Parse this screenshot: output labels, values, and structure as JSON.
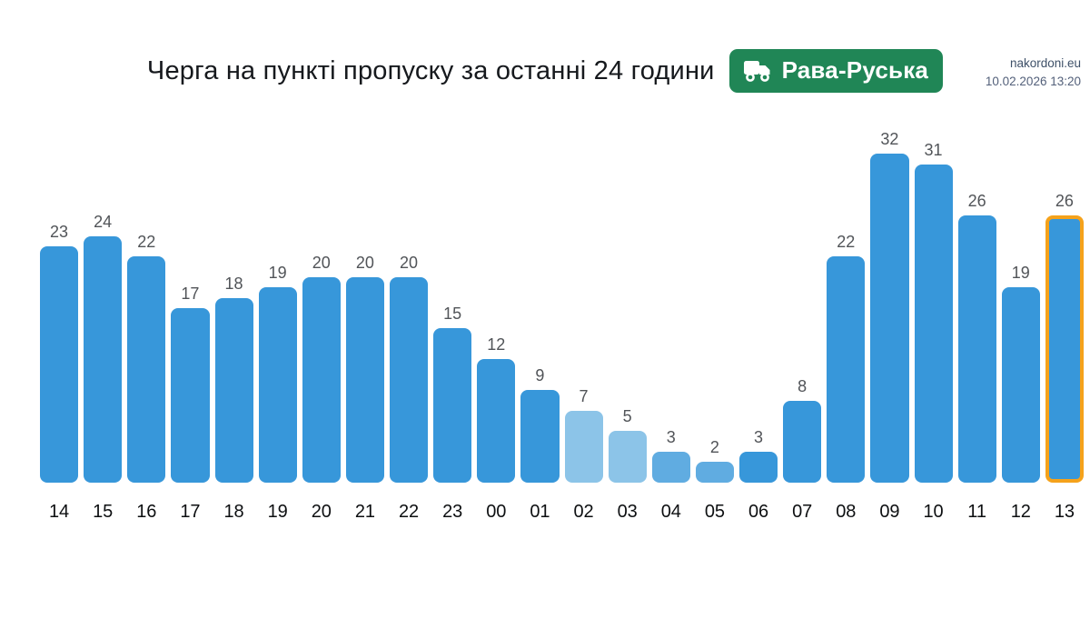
{
  "header": {
    "site": "nakordoni.eu",
    "datetime": "10.02.2026 13:20"
  },
  "title": {
    "text": "Черга на пункті пропуску за останні 24 години",
    "badge_label": "Рава-Руська"
  },
  "colors": {
    "badge_green": "#208656",
    "bar_default": "#3797da",
    "bar_light": "#8cc4e8",
    "bar_medium": "#60ace1",
    "highlight_border": "#f5a21b",
    "value_label": "#515458",
    "axis_label": "#0d0f11"
  },
  "chart_data": {
    "type": "bar",
    "title": "Черга на пункті пропуску за останні 24 години",
    "xlabel": "",
    "ylabel": "",
    "ylim": [
      0,
      34
    ],
    "grid": false,
    "value_labels": true,
    "categories": [
      "14",
      "15",
      "16",
      "17",
      "18",
      "19",
      "20",
      "21",
      "22",
      "23",
      "00",
      "01",
      "02",
      "03",
      "04",
      "05",
      "06",
      "07",
      "08",
      "09",
      "10",
      "11",
      "12",
      "13"
    ],
    "values": [
      23,
      24,
      22,
      17,
      18,
      19,
      20,
      20,
      20,
      15,
      12,
      9,
      7,
      5,
      3,
      2,
      3,
      8,
      22,
      32,
      31,
      26,
      19,
      26
    ],
    "bar_colors": [
      "#3797da",
      "#3797da",
      "#3797da",
      "#3797da",
      "#3797da",
      "#3797da",
      "#3797da",
      "#3797da",
      "#3797da",
      "#3797da",
      "#3797da",
      "#3797da",
      "#8cc4e8",
      "#8cc4e8",
      "#60ace1",
      "#60ace1",
      "#3797da",
      "#3797da",
      "#3797da",
      "#3797da",
      "#3797da",
      "#3797da",
      "#3797da",
      "#3797da"
    ],
    "highlight_index": 23,
    "legend": []
  }
}
